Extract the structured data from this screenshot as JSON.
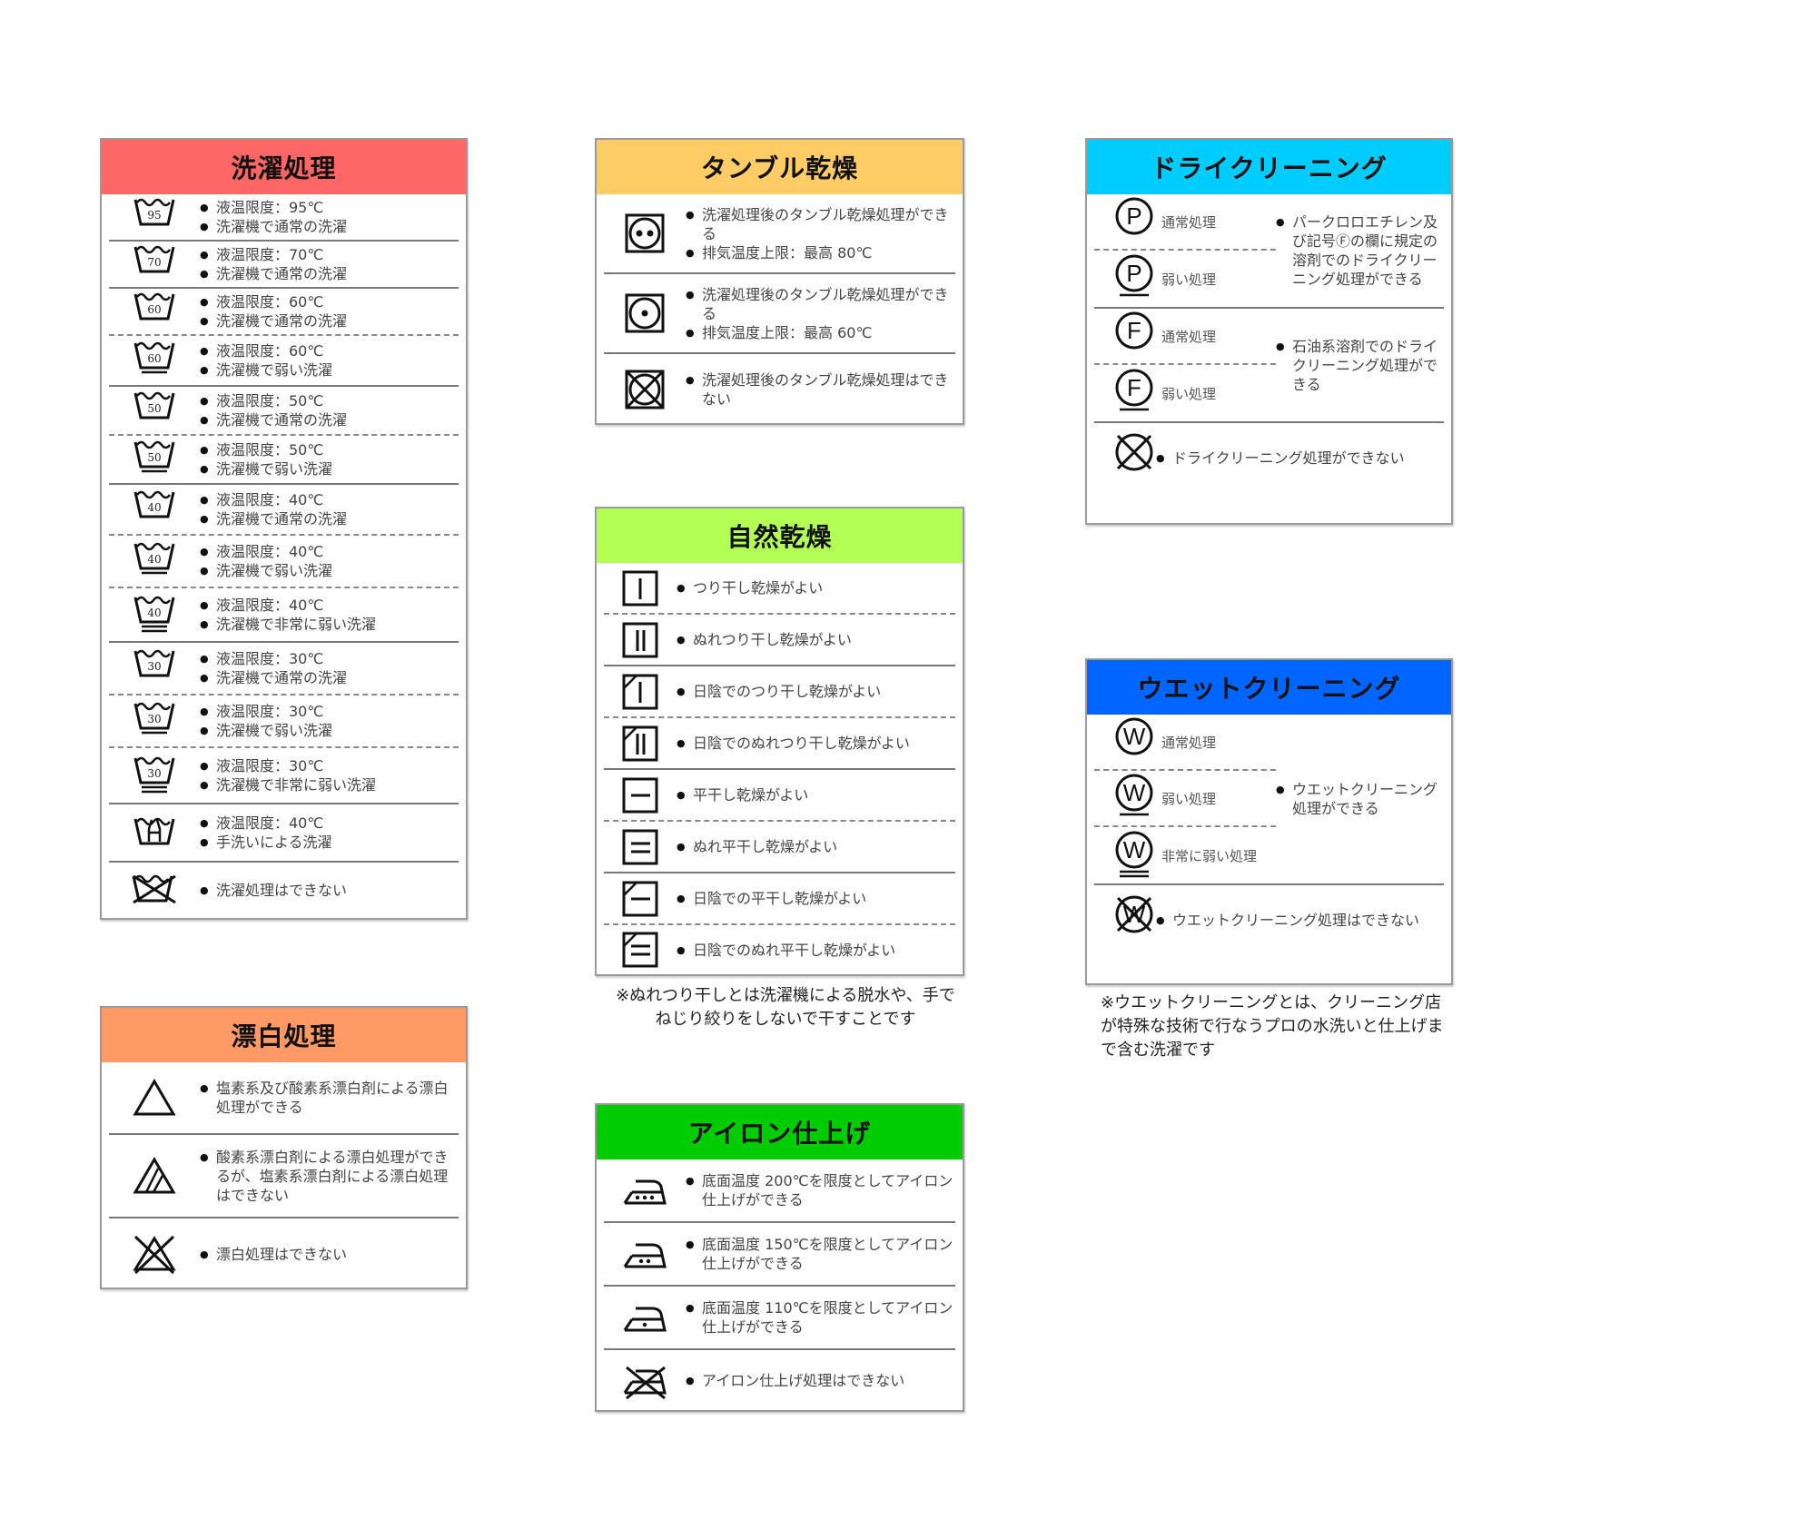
{
  "washing": {
    "title": "洗濯処理",
    "color": "#ff6666",
    "rows": [
      {
        "icon": "wash-tub-icon",
        "temp": "95",
        "bars": 0,
        "lines": [
          "液温限度：95℃",
          "洗濯機で通常の洗濯"
        ]
      },
      {
        "icon": "wash-tub-icon",
        "temp": "70",
        "bars": 0,
        "lines": [
          "液温限度：70℃",
          "洗濯機で通常の洗濯"
        ]
      },
      {
        "icon": "wash-tub-icon",
        "temp": "60",
        "bars": 0,
        "lines": [
          "液温限度：60℃",
          "洗濯機で通常の洗濯"
        ]
      },
      {
        "icon": "wash-tub-icon",
        "temp": "60",
        "bars": 1,
        "lines": [
          "液温限度：60℃",
          "洗濯機で弱い洗濯"
        ]
      },
      {
        "icon": "wash-tub-icon",
        "temp": "50",
        "bars": 0,
        "lines": [
          "液温限度：50℃",
          "洗濯機で通常の洗濯"
        ]
      },
      {
        "icon": "wash-tub-icon",
        "temp": "50",
        "bars": 1,
        "lines": [
          "液温限度：50℃",
          "洗濯機で弱い洗濯"
        ]
      },
      {
        "icon": "wash-tub-icon",
        "temp": "40",
        "bars": 0,
        "lines": [
          "液温限度：40℃",
          "洗濯機で通常の洗濯"
        ]
      },
      {
        "icon": "wash-tub-icon",
        "temp": "40",
        "bars": 1,
        "lines": [
          "液温限度：40℃",
          "洗濯機で弱い洗濯"
        ]
      },
      {
        "icon": "wash-tub-icon",
        "temp": "40",
        "bars": 2,
        "lines": [
          "液温限度：40℃",
          "洗濯機で非常に弱い洗濯"
        ]
      },
      {
        "icon": "wash-tub-icon",
        "temp": "30",
        "bars": 0,
        "lines": [
          "液温限度：30℃",
          "洗濯機で通常の洗濯"
        ]
      },
      {
        "icon": "wash-tub-icon",
        "temp": "30",
        "bars": 1,
        "lines": [
          "液温限度：30℃",
          "洗濯機で弱い洗濯"
        ]
      },
      {
        "icon": "wash-tub-icon",
        "temp": "30",
        "bars": 2,
        "lines": [
          "液温限度：30℃",
          "洗濯機で非常に弱い洗濯"
        ]
      },
      {
        "icon": "hand-wash-icon",
        "lines": [
          "液温限度：40℃",
          "手洗いによる洗濯"
        ]
      },
      {
        "icon": "no-wash-icon",
        "lines": [
          "洗濯処理はできない"
        ]
      }
    ]
  },
  "bleach": {
    "title": "漂白処理",
    "color": "#ff9966",
    "rows": [
      {
        "icon": "bleach-any-icon",
        "lines": [
          "塩素系及び酸素系漂白剤による漂白処理ができる"
        ]
      },
      {
        "icon": "bleach-oxygen-only-icon",
        "lines": [
          "酸素系漂白剤による漂白処理ができるが、塩素系漂白剤による漂白処理はできない"
        ]
      },
      {
        "icon": "no-bleach-icon",
        "lines": [
          "漂白処理はできない"
        ]
      }
    ]
  },
  "tumble": {
    "title": "タンブル乾燥",
    "color": "#ffcc66",
    "rows": [
      {
        "icon": "tumble-dry-high-icon",
        "dots": 2,
        "lines": [
          "洗濯処理後のタンブル乾燥処理ができる",
          "排気温度上限：最高 80℃"
        ]
      },
      {
        "icon": "tumble-dry-low-icon",
        "dots": 1,
        "lines": [
          "洗濯処理後のタンブル乾燥処理ができる",
          "排気温度上限：最高 60℃"
        ]
      },
      {
        "icon": "no-tumble-dry-icon",
        "lines": [
          "洗濯処理後のタンブル乾燥処理はできない"
        ]
      }
    ]
  },
  "natural": {
    "title": "自然乾燥",
    "color": "#b3ff55",
    "rows": [
      {
        "icon": "line-dry-icon",
        "lines": [
          "つり干し乾燥がよい"
        ]
      },
      {
        "icon": "drip-line-dry-icon",
        "lines": [
          "ぬれつり干し乾燥がよい"
        ]
      },
      {
        "icon": "line-dry-shade-icon",
        "lines": [
          "日陰でのつり干し乾燥がよい"
        ]
      },
      {
        "icon": "drip-line-dry-shade-icon",
        "lines": [
          "日陰でのぬれつり干し乾燥がよい"
        ]
      },
      {
        "icon": "flat-dry-icon",
        "lines": [
          "平干し乾燥がよい"
        ]
      },
      {
        "icon": "drip-flat-dry-icon",
        "lines": [
          "ぬれ平干し乾燥がよい"
        ]
      },
      {
        "icon": "flat-dry-shade-icon",
        "lines": [
          "日陰での平干し乾燥がよい"
        ]
      },
      {
        "icon": "drip-flat-dry-shade-icon",
        "lines": [
          "日陰でのぬれ平干し乾燥がよい"
        ]
      }
    ],
    "note": "※ぬれつり干しとは洗濯機による脱水や、手でねじり絞りをしないで干すことです"
  },
  "iron": {
    "title": "アイロン仕上げ",
    "color": "#00cc00",
    "rows": [
      {
        "icon": "iron-high-icon",
        "dots": 3,
        "lines": [
          "底面温度 200℃を限度としてアイロン仕上げができる"
        ]
      },
      {
        "icon": "iron-medium-icon",
        "dots": 2,
        "lines": [
          "底面温度 150℃を限度としてアイロン仕上げができる"
        ]
      },
      {
        "icon": "iron-low-icon",
        "dots": 1,
        "lines": [
          "底面温度 110℃を限度としてアイロン仕上げができる"
        ]
      },
      {
        "icon": "no-iron-icon",
        "lines": [
          "アイロン仕上げ処理はできない"
        ]
      }
    ]
  },
  "dry": {
    "title": "ドライクリーニング",
    "color": "#00ccff",
    "groups": [
      {
        "symbols": [
          {
            "letter": "P",
            "bars": 0,
            "label": "通常処理"
          },
          {
            "letter": "P",
            "bars": 1,
            "label": "弱い処理"
          }
        ],
        "lines": [
          "パークロロエチレン及び記号Ⓕの欄に規定の溶剤でのドライクリーニング処理ができる"
        ]
      },
      {
        "symbols": [
          {
            "letter": "F",
            "bars": 0,
            "label": "通常処理"
          },
          {
            "letter": "F",
            "bars": 1,
            "label": "弱い処理"
          }
        ],
        "lines": [
          "石油系溶剤でのドライクリーニング処理ができる"
        ]
      },
      {
        "none": true,
        "lines": [
          "ドライクリーニング処理ができない"
        ]
      }
    ]
  },
  "wet": {
    "title": "ウエットクリーニング",
    "color": "#0066ff",
    "groups": [
      {
        "symbols": [
          {
            "letter": "W",
            "bars": 0,
            "label": "通常処理"
          },
          {
            "letter": "W",
            "bars": 1,
            "label": "弱い処理"
          },
          {
            "letter": "W",
            "bars": 2,
            "label": "非常に弱い処理"
          }
        ],
        "lines": [
          "ウエットクリーニング処理ができる"
        ]
      },
      {
        "none": true,
        "letter": "W",
        "lines": [
          "ウエットクリーニング処理はできない"
        ]
      }
    ],
    "note": "※ウエットクリーニングとは、クリーニング店が特殊な技術で行なうプロの水洗いと仕上げまで含む洗濯です"
  }
}
